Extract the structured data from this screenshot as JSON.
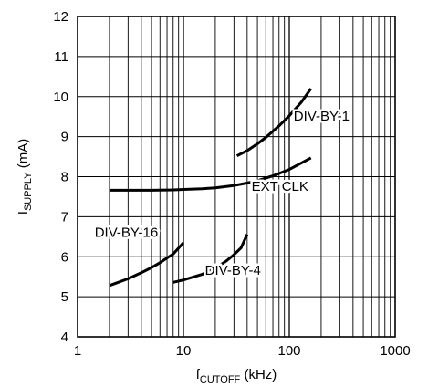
{
  "chart_data": {
    "type": "line",
    "xscale": "log",
    "xlim": [
      1,
      1000
    ],
    "ylim": [
      4,
      12
    ],
    "xlabel_main": "f",
    "xlabel_sub": "CUTOFF",
    "xlabel_unit": " (kHz)",
    "ylabel_main": "I",
    "ylabel_sub": "SUPPLY",
    "ylabel_unit": " (mA)",
    "x_ticks": [
      1,
      10,
      100,
      1000
    ],
    "x_tick_labels": [
      "1",
      "10",
      "100",
      "1000"
    ],
    "y_ticks": [
      4,
      5,
      6,
      7,
      8,
      9,
      10,
      11,
      12
    ],
    "y_tick_labels": [
      "4",
      "5",
      "6",
      "7",
      "8",
      "9",
      "10",
      "11",
      "12"
    ],
    "grid": true,
    "series": [
      {
        "name": "DIV-BY-1",
        "x": [
          32,
          40,
          50,
          60,
          80,
          100,
          130,
          160
        ],
        "y": [
          8.52,
          8.65,
          8.82,
          8.98,
          9.27,
          9.52,
          9.86,
          10.2
        ]
      },
      {
        "name": "EXT CLK",
        "x": [
          2,
          3,
          5,
          8,
          10,
          15,
          20,
          30,
          40,
          50,
          70,
          100,
          130,
          160
        ],
        "y": [
          7.66,
          7.66,
          7.66,
          7.67,
          7.68,
          7.7,
          7.72,
          7.78,
          7.84,
          7.9,
          8.02,
          8.18,
          8.34,
          8.47
        ]
      },
      {
        "name": "DIV-BY-16",
        "x": [
          2,
          3,
          4,
          5,
          6,
          7,
          8,
          10
        ],
        "y": [
          5.28,
          5.45,
          5.6,
          5.73,
          5.85,
          5.97,
          6.07,
          6.35
        ]
      },
      {
        "name": "DIV-BY-4",
        "x": [
          8,
          10,
          15,
          20,
          25,
          30,
          35,
          40
        ],
        "y": [
          5.36,
          5.42,
          5.56,
          5.72,
          5.88,
          6.05,
          6.22,
          6.56
        ]
      }
    ],
    "series_labels": [
      {
        "text": "DIV-BY-1",
        "x": 110,
        "y": 9.4
      },
      {
        "text": "EXT CLK",
        "x": 44,
        "y": 7.65
      },
      {
        "text": "DIV-BY-16",
        "x": 1.45,
        "y": 6.5
      },
      {
        "text": "DIV-BY-4",
        "x": 16,
        "y": 5.55
      }
    ]
  }
}
